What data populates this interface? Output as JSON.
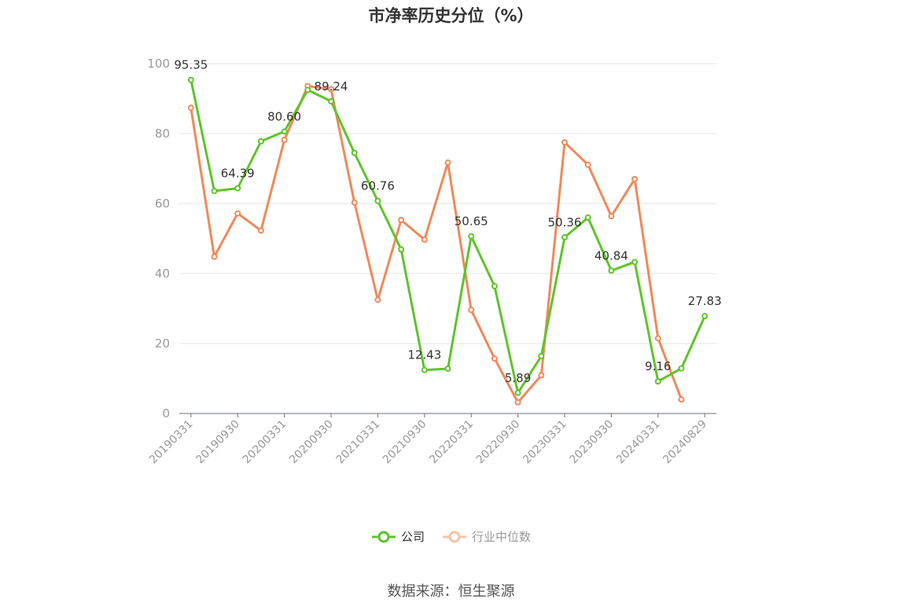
{
  "title": "市净率历史分位（%）",
  "source": "数据来源：恒生聚源",
  "legend": {
    "company": "公司",
    "industry": "行业中位数"
  },
  "colors": {
    "company": "#5ec42a",
    "industry": "#f0895a",
    "grid": "#e6e6e6",
    "axis": "#6e7079",
    "label": "#999999"
  },
  "chart_data": {
    "type": "line",
    "title": "市净率历史分位（%）",
    "ylim": [
      0,
      100
    ],
    "yticks": [
      0,
      20,
      40,
      60,
      80,
      100
    ],
    "grid": true,
    "legend_position": "bottom",
    "x": [
      "20190331",
      "20190630",
      "20190930",
      "20191231",
      "20200331",
      "20200630",
      "20200930",
      "20201231",
      "20210331",
      "20210630",
      "20210930",
      "20211231",
      "20220331",
      "20220630",
      "20220930",
      "20221231",
      "20230331",
      "20230630",
      "20230930",
      "20231231",
      "20240331",
      "20240630",
      "20240829"
    ],
    "xtick_labels": [
      "20190331",
      "20190930",
      "20200331",
      "20200930",
      "20210331",
      "20210930",
      "20220331",
      "20220930",
      "20230331",
      "20230930",
      "20240331",
      "20240829"
    ],
    "series": [
      {
        "name": "公司",
        "values": [
          95.35,
          63.6,
          64.39,
          77.8,
          80.6,
          92.5,
          89.24,
          74.5,
          60.76,
          46.9,
          12.43,
          12.8,
          50.65,
          36.4,
          5.89,
          16.4,
          50.36,
          56.0,
          40.84,
          43.3,
          9.16,
          12.9,
          27.83
        ],
        "labels": [
          "95.35",
          null,
          "64.39",
          null,
          "80.60",
          null,
          "89.24",
          null,
          "60.76",
          null,
          "12.43",
          null,
          "50.65",
          null,
          "5.89",
          null,
          "50.36",
          null,
          "40.84",
          null,
          "9.16",
          null,
          "27.83"
        ]
      },
      {
        "name": "行业中位数",
        "values": [
          87.4,
          44.8,
          57.2,
          52.3,
          78.2,
          93.6,
          92.7,
          60.3,
          32.5,
          55.3,
          49.7,
          71.7,
          29.6,
          15.7,
          3.2,
          10.9,
          77.5,
          71.1,
          56.4,
          67.0,
          21.5,
          4.0,
          null
        ]
      }
    ]
  }
}
